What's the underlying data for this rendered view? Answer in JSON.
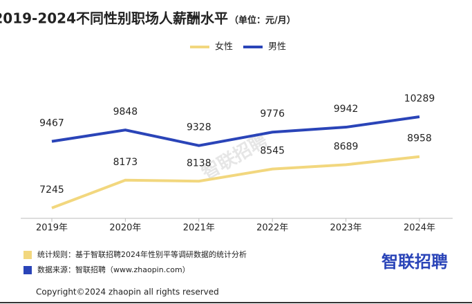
{
  "chart_data": {
    "type": "line",
    "title": "2019-2024不同性别职场人薪酬水平",
    "subtitle": "（单位：元/月）",
    "categories": [
      "2019年",
      "2020年",
      "2021年",
      "2022年",
      "2023年",
      "2024年"
    ],
    "series": [
      {
        "name": "女性",
        "color": "#f2d77e",
        "values": [
          7245,
          8173,
          8138,
          8545,
          8689,
          8958
        ]
      },
      {
        "name": "男性",
        "color": "#2a44b8",
        "values": [
          9467,
          9848,
          9328,
          9776,
          9942,
          10289
        ]
      }
    ],
    "legend": "top"
  },
  "footer": {
    "notes": [
      "统计规则：基于智联招聘2024年性别平等调研数据的统计分析",
      "数据来源：智联招聘（www.zhaopin.com）"
    ],
    "logo": "智联招聘",
    "watermark": "智联招聘",
    "copyright": "Copyright©2024 zhaopin all rights reserved"
  }
}
